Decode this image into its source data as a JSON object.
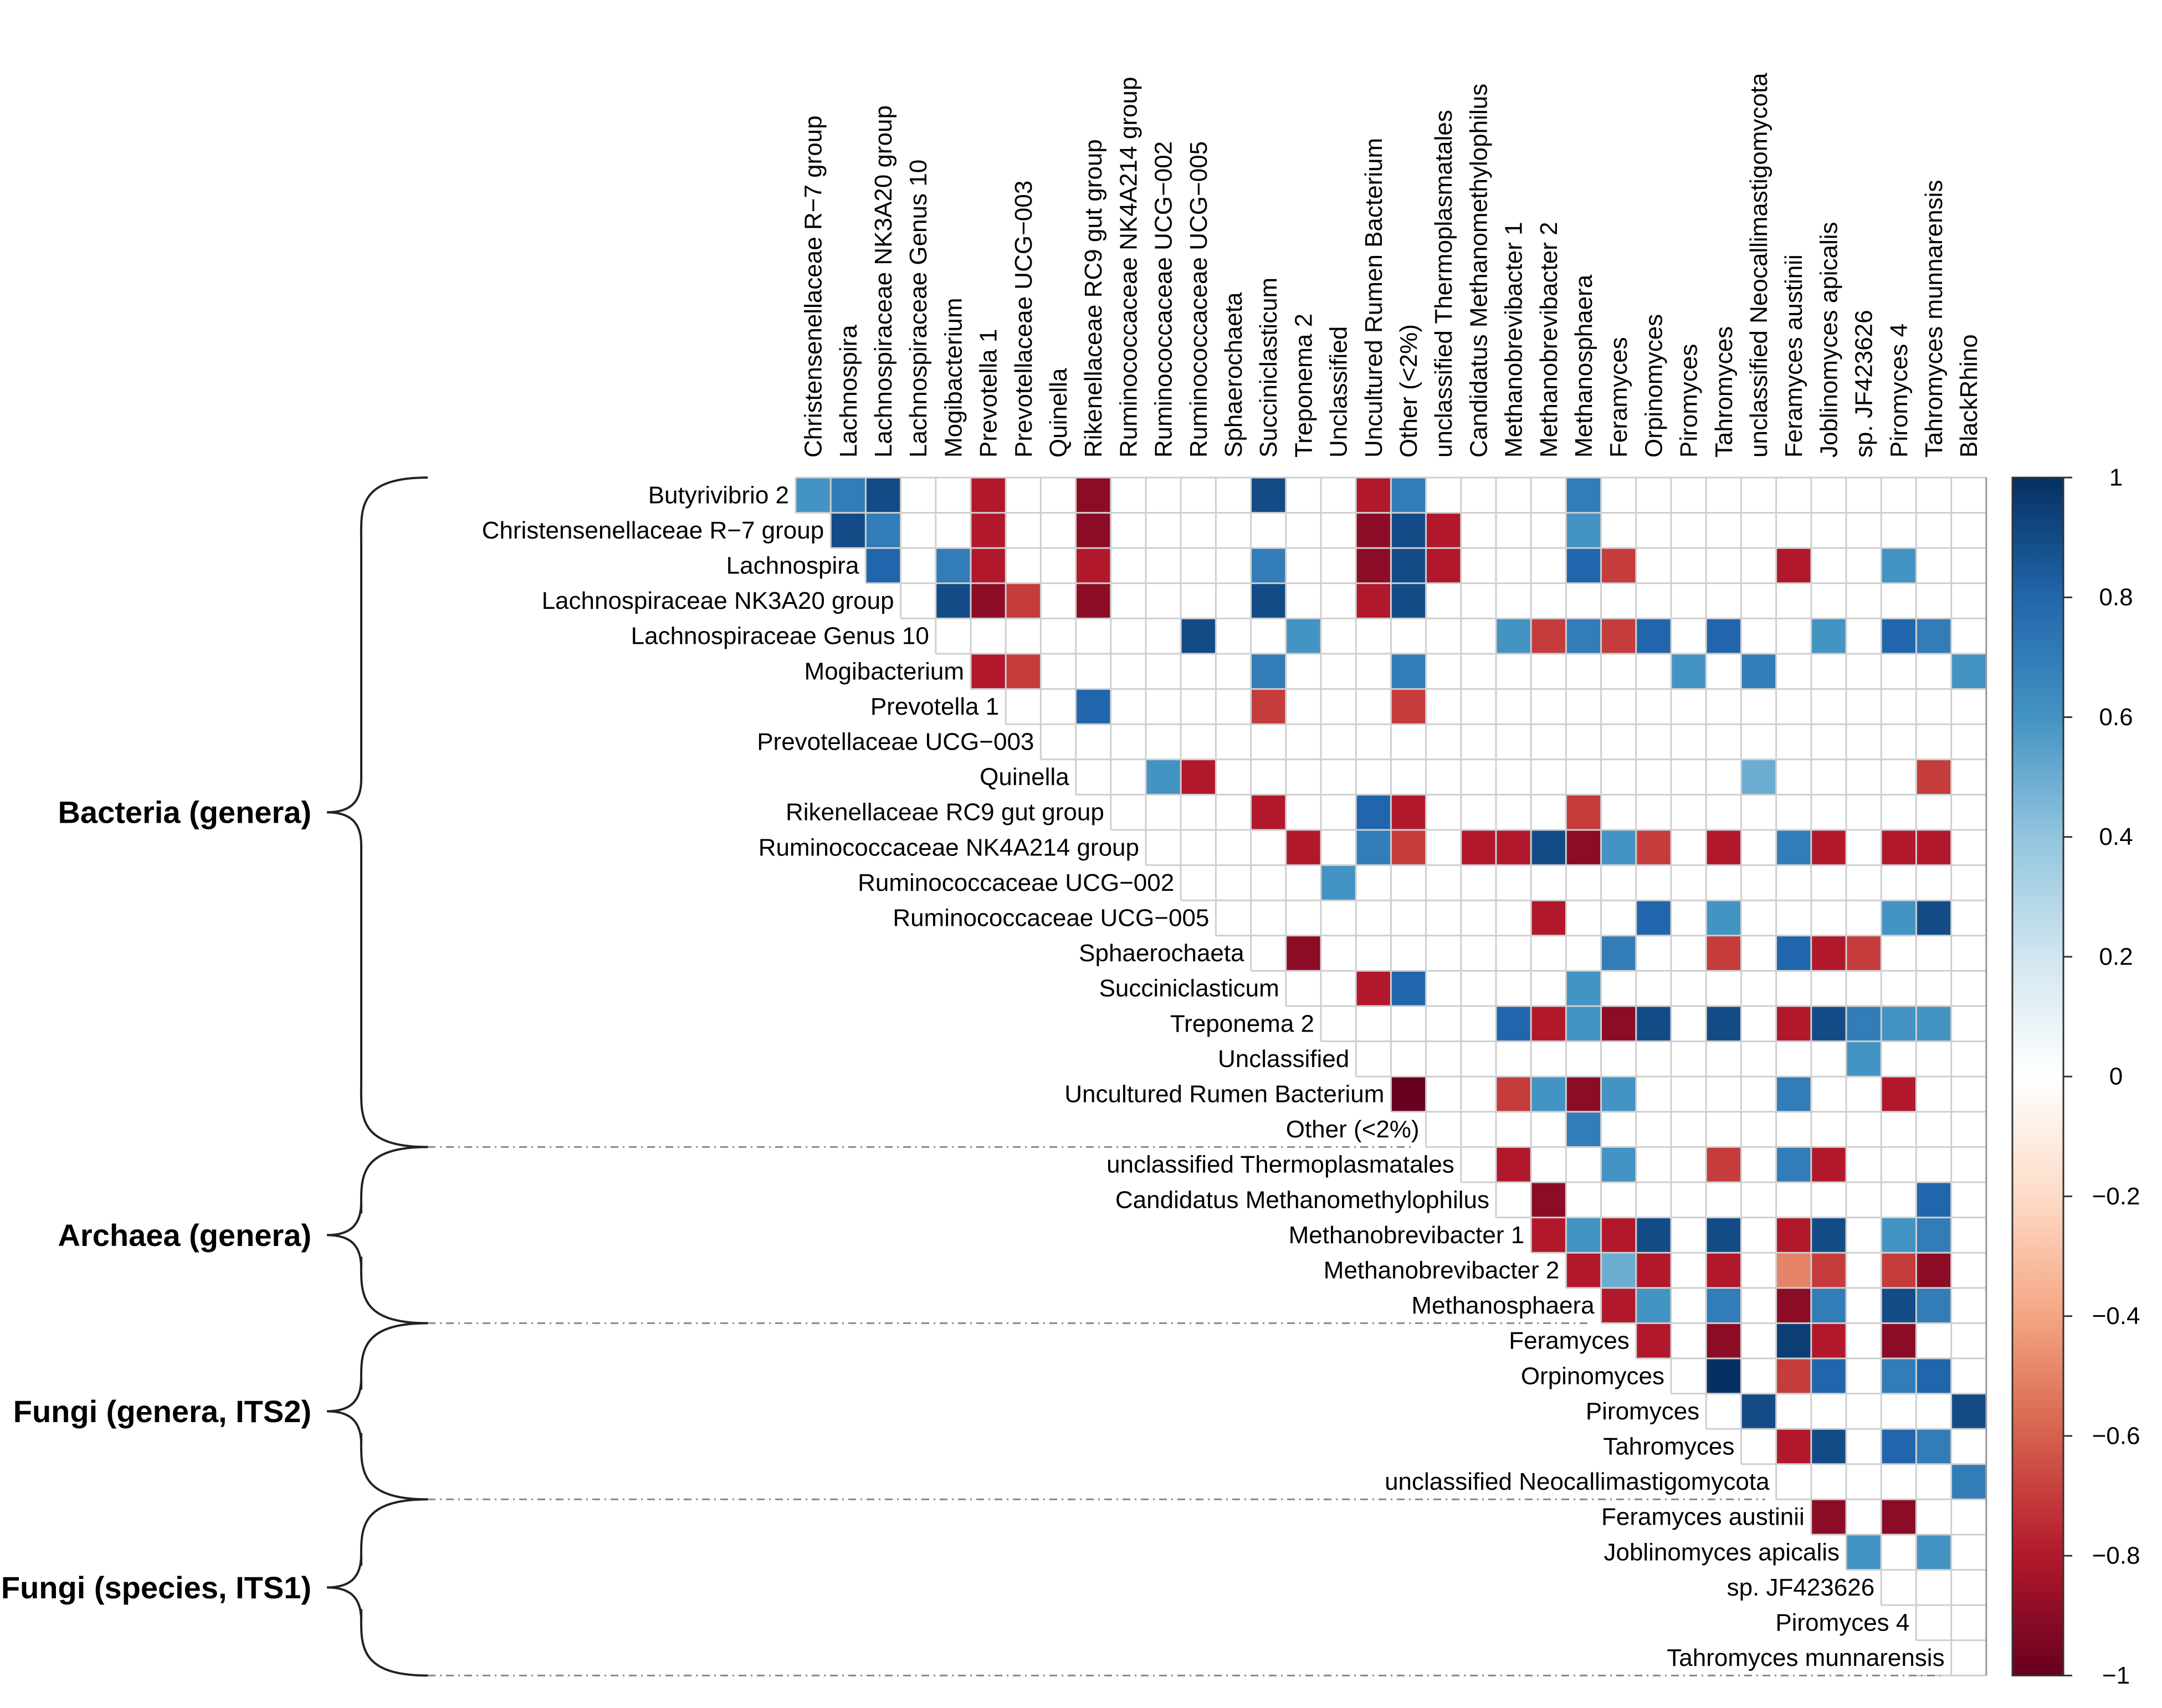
{
  "chart_data": {
    "type": "heatmap",
    "title": "",
    "subtitle": "",
    "columns": [
      "Christensenellaceae R−7 group",
      "Lachnospira",
      "Lachnospiraceae NK3A20 group",
      "Lachnospiraceae Genus 10",
      "Mogibacterium",
      "Prevotella 1",
      "Prevotellaceae UCG−003",
      "Quinella",
      "Rikenellaceae RC9 gut group",
      "Ruminococcaceae NK4A214 group",
      "Ruminococcaceae UCG−002",
      "Ruminococcaceae UCG−005",
      "Sphaerochaeta",
      "Succiniclasticum",
      "Treponema 2",
      "Unclassified",
      "Uncultured Rumen Bacterium",
      "Other (<2%)",
      "unclassified Thermoplasmatales",
      "Candidatus Methanomethylophilus",
      "Methanobrevibacter 1",
      "Methanobrevibacter 2",
      "Methanosphaera",
      "Feramyces",
      "Orpinomyces",
      "Piromyces",
      "Tahromyces",
      "unclassified Neocallimastigomycota",
      "Feramyces austinii",
      "Joblinomyces apicalis",
      "sp. JF423626",
      "Piromyces 4",
      "Tahromyces munnarensis",
      "BlackRhino"
    ],
    "rows": [
      "Butyrivibrio 2",
      "Christensenellaceae R−7 group",
      "Lachnospira",
      "Lachnospiraceae NK3A20 group",
      "Lachnospiraceae Genus 10",
      "Mogibacterium",
      "Prevotella 1",
      "Prevotellaceae UCG−003",
      "Quinella",
      "Rikenellaceae RC9 gut group",
      "Ruminococcaceae NK4A214 group",
      "Ruminococcaceae UCG−002",
      "Ruminococcaceae UCG−005",
      "Sphaerochaeta",
      "Succiniclasticum",
      "Treponema 2",
      "Unclassified",
      "Uncultured Rumen Bacterium",
      "Other (<2%)",
      "unclassified Thermoplasmatales",
      "Candidatus Methanomethylophilus",
      "Methanobrevibacter 1",
      "Methanobrevibacter 2",
      "Methanosphaera",
      "Feramyces",
      "Orpinomyces",
      "Piromyces",
      "Tahromyces",
      "unclassified Neocallimastigomycota",
      "Feramyces austinii",
      "Joblinomyces apicalis",
      "sp. JF423626",
      "Piromyces 4",
      "Tahromyces munnarensis"
    ],
    "note": "Upper-triangular correlation matrix; cells = [row index, column index, correlation].",
    "cells": [
      [
        0,
        0,
        0.6
      ],
      [
        0,
        1,
        0.7
      ],
      [
        0,
        2,
        0.9
      ],
      [
        0,
        5,
        -0.8
      ],
      [
        0,
        8,
        -0.9
      ],
      [
        0,
        13,
        0.9
      ],
      [
        0,
        16,
        -0.8
      ],
      [
        0,
        17,
        0.7
      ],
      [
        0,
        22,
        0.7
      ],
      [
        1,
        1,
        0.9
      ],
      [
        1,
        2,
        0.7
      ],
      [
        1,
        5,
        -0.8
      ],
      [
        1,
        8,
        -0.9
      ],
      [
        1,
        16,
        -0.9
      ],
      [
        1,
        17,
        0.9
      ],
      [
        1,
        18,
        -0.8
      ],
      [
        1,
        22,
        0.6
      ],
      [
        2,
        2,
        0.8
      ],
      [
        2,
        4,
        0.7
      ],
      [
        2,
        5,
        -0.8
      ],
      [
        2,
        8,
        -0.8
      ],
      [
        2,
        13,
        0.7
      ],
      [
        2,
        16,
        -0.9
      ],
      [
        2,
        17,
        0.9
      ],
      [
        2,
        18,
        -0.8
      ],
      [
        2,
        22,
        0.8
      ],
      [
        2,
        23,
        -0.7
      ],
      [
        2,
        28,
        -0.8
      ],
      [
        2,
        31,
        0.6
      ],
      [
        3,
        4,
        0.9
      ],
      [
        3,
        5,
        -0.9
      ],
      [
        3,
        6,
        -0.7
      ],
      [
        3,
        8,
        -0.9
      ],
      [
        3,
        13,
        0.9
      ],
      [
        3,
        16,
        -0.8
      ],
      [
        3,
        17,
        0.9
      ],
      [
        4,
        11,
        0.9
      ],
      [
        4,
        14,
        0.6
      ],
      [
        4,
        20,
        0.6
      ],
      [
        4,
        21,
        -0.7
      ],
      [
        4,
        22,
        0.7
      ],
      [
        4,
        23,
        -0.7
      ],
      [
        4,
        24,
        0.8
      ],
      [
        4,
        26,
        0.8
      ],
      [
        4,
        29,
        0.6
      ],
      [
        4,
        31,
        0.8
      ],
      [
        4,
        32,
        0.7
      ],
      [
        5,
        5,
        -0.8
      ],
      [
        5,
        6,
        -0.7
      ],
      [
        5,
        13,
        0.7
      ],
      [
        5,
        17,
        0.7
      ],
      [
        5,
        25,
        0.6
      ],
      [
        5,
        27,
        0.7
      ],
      [
        5,
        33,
        0.6
      ],
      [
        6,
        8,
        0.8
      ],
      [
        6,
        13,
        -0.7
      ],
      [
        6,
        17,
        -0.7
      ],
      [
        8,
        10,
        0.6
      ],
      [
        8,
        11,
        -0.8
      ],
      [
        8,
        27,
        0.5
      ],
      [
        8,
        32,
        -0.7
      ],
      [
        9,
        13,
        -0.8
      ],
      [
        9,
        16,
        0.8
      ],
      [
        9,
        17,
        -0.8
      ],
      [
        9,
        22,
        -0.7
      ],
      [
        10,
        14,
        -0.8
      ],
      [
        10,
        16,
        0.7
      ],
      [
        10,
        17,
        -0.7
      ],
      [
        10,
        19,
        -0.8
      ],
      [
        10,
        20,
        -0.8
      ],
      [
        10,
        21,
        0.9
      ],
      [
        10,
        22,
        -0.9
      ],
      [
        10,
        23,
        0.6
      ],
      [
        10,
        24,
        -0.7
      ],
      [
        10,
        26,
        -0.8
      ],
      [
        10,
        28,
        0.7
      ],
      [
        10,
        29,
        -0.8
      ],
      [
        10,
        31,
        -0.8
      ],
      [
        10,
        32,
        -0.8
      ],
      [
        11,
        15,
        0.6
      ],
      [
        12,
        21,
        -0.8
      ],
      [
        12,
        24,
        0.8
      ],
      [
        12,
        26,
        0.6
      ],
      [
        12,
        31,
        0.6
      ],
      [
        12,
        32,
        0.9
      ],
      [
        13,
        14,
        -0.9
      ],
      [
        13,
        23,
        0.7
      ],
      [
        13,
        26,
        -0.7
      ],
      [
        13,
        28,
        0.8
      ],
      [
        13,
        29,
        -0.8
      ],
      [
        13,
        30,
        -0.7
      ],
      [
        14,
        16,
        -0.8
      ],
      [
        14,
        17,
        0.8
      ],
      [
        14,
        22,
        0.6
      ],
      [
        15,
        20,
        0.8
      ],
      [
        15,
        21,
        -0.8
      ],
      [
        15,
        22,
        0.6
      ],
      [
        15,
        23,
        -0.9
      ],
      [
        15,
        24,
        0.9
      ],
      [
        15,
        26,
        0.9
      ],
      [
        15,
        28,
        -0.8
      ],
      [
        15,
        29,
        0.9
      ],
      [
        15,
        30,
        0.7
      ],
      [
        15,
        31,
        0.6
      ],
      [
        15,
        32,
        0.6
      ],
      [
        16,
        30,
        0.6
      ],
      [
        17,
        17,
        -1.0
      ],
      [
        17,
        20,
        -0.7
      ],
      [
        17,
        21,
        0.6
      ],
      [
        17,
        22,
        -0.9
      ],
      [
        17,
        23,
        0.6
      ],
      [
        17,
        28,
        0.7
      ],
      [
        17,
        31,
        -0.8
      ],
      [
        18,
        22,
        0.7
      ],
      [
        19,
        20,
        -0.8
      ],
      [
        19,
        23,
        0.6
      ],
      [
        19,
        26,
        -0.7
      ],
      [
        19,
        28,
        0.7
      ],
      [
        19,
        29,
        -0.8
      ],
      [
        20,
        21,
        -0.9
      ],
      [
        20,
        32,
        0.8
      ],
      [
        21,
        21,
        -0.8
      ],
      [
        21,
        22,
        0.6
      ],
      [
        21,
        23,
        -0.8
      ],
      [
        21,
        24,
        0.9
      ],
      [
        21,
        26,
        0.9
      ],
      [
        21,
        28,
        -0.8
      ],
      [
        21,
        29,
        0.9
      ],
      [
        21,
        31,
        0.6
      ],
      [
        21,
        32,
        0.7
      ],
      [
        22,
        22,
        -0.8
      ],
      [
        22,
        23,
        0.5
      ],
      [
        22,
        24,
        -0.8
      ],
      [
        22,
        26,
        -0.8
      ],
      [
        22,
        28,
        -0.5
      ],
      [
        22,
        29,
        -0.7
      ],
      [
        22,
        31,
        -0.7
      ],
      [
        22,
        32,
        -0.9
      ],
      [
        23,
        23,
        -0.8
      ],
      [
        23,
        24,
        0.6
      ],
      [
        23,
        26,
        0.7
      ],
      [
        23,
        28,
        -0.9
      ],
      [
        23,
        29,
        0.7
      ],
      [
        23,
        31,
        0.9
      ],
      [
        23,
        32,
        0.7
      ],
      [
        24,
        24,
        -0.8
      ],
      [
        24,
        26,
        -0.9
      ],
      [
        24,
        28,
        0.95
      ],
      [
        24,
        29,
        -0.8
      ],
      [
        24,
        31,
        -0.9
      ],
      [
        25,
        26,
        1.0
      ],
      [
        25,
        28,
        -0.7
      ],
      [
        25,
        29,
        0.8
      ],
      [
        25,
        31,
        0.7
      ],
      [
        25,
        32,
        0.8
      ],
      [
        26,
        27,
        0.9
      ],
      [
        26,
        33,
        0.9
      ],
      [
        27,
        28,
        -0.8
      ],
      [
        27,
        29,
        0.9
      ],
      [
        27,
        31,
        0.8
      ],
      [
        27,
        32,
        0.7
      ],
      [
        28,
        33,
        0.7
      ],
      [
        29,
        29,
        -0.9
      ],
      [
        29,
        31,
        -0.9
      ],
      [
        30,
        30,
        0.6
      ],
      [
        30,
        32,
        0.6
      ]
    ],
    "groups": [
      {
        "label": "Bacteria (genera)"
      },
      {
        "label": "Archaea (genera)"
      },
      {
        "label": "Fungi (genera, ITS2)"
      },
      {
        "label": "Fungi (species, ITS1)"
      }
    ],
    "colorbar": {
      "min": -1,
      "max": 1,
      "ticks": [
        "1",
        "0.8",
        "0.6",
        "0.4",
        "0.2",
        "0",
        "−0.2",
        "−0.4",
        "−0.6",
        "−0.8",
        "−1"
      ],
      "colors": {
        "neg_dark": "#67001f",
        "neg_mid": "#d6604d",
        "neutral": "#ffffff",
        "pos_mid": "#4393c3",
        "pos_dark": "#053061"
      }
    }
  }
}
